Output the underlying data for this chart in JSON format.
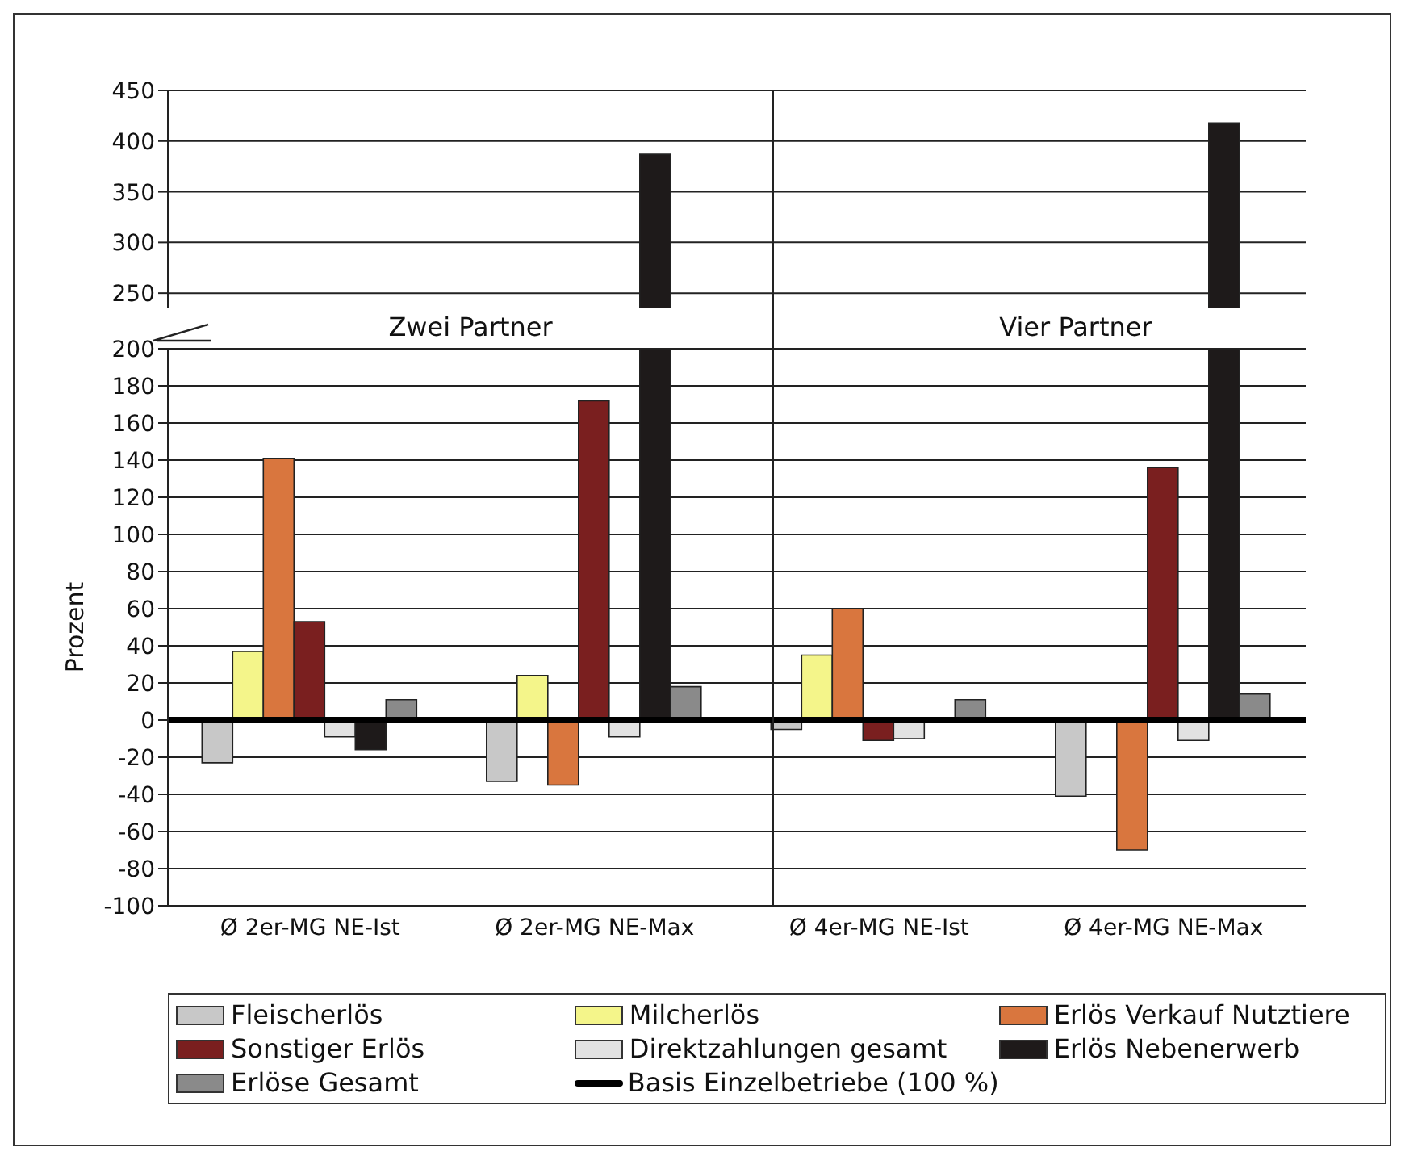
{
  "chart_data": [
    {
      "type": "bar",
      "categories": [
        null,
        null,
        null,
        null
      ],
      "series": [
        {
          "color": "#c8c8c8",
          "values": [
            null,
            null,
            null,
            null
          ]
        },
        {
          "color": "#f4f58a",
          "values": [
            null,
            null,
            null,
            null
          ]
        },
        {
          "color": "#d9763e",
          "values": [
            null,
            null,
            null,
            null
          ]
        },
        {
          "color": "#7a1f1f",
          "values": [
            null,
            null,
            null,
            null
          ]
        },
        {
          "color": "#e2e2e2",
          "values": [
            null,
            null,
            null,
            null
          ]
        },
        {
          "color": "#1e1a1a",
          "values": [
            null,
            387,
            null,
            418
          ]
        },
        {
          "color": "#8a8a8a",
          "values": [
            null,
            null,
            null,
            null
          ]
        }
      ],
      "ylim": [
        235,
        450
      ],
      "yticks": [
        250,
        300,
        350,
        400,
        450
      ],
      "grid": "y",
      "tick_labels": "y"
    },
    {
      "type": "bar",
      "categories": [
        "Ø 2er-MG NE-Ist",
        "Ø 2er-MG NE-Max",
        "Ø 4er-MG NE-Ist",
        "Ø 4er-MG NE-Max"
      ],
      "ylabel": "Prozent",
      "annotations": [
        "Zwei Partner",
        "Vier Partner"
      ],
      "series": [
        {
          "name": "Fleischerlös",
          "color": "#c8c8c8",
          "values": [
            -23,
            -33,
            -5,
            -41
          ]
        },
        {
          "name": "Milcherlös",
          "color": "#f4f58a",
          "values": [
            37,
            24,
            35,
            null
          ]
        },
        {
          "name": "Erlös Verkauf Nutztiere",
          "color": "#d9763e",
          "values": [
            141,
            -35,
            60,
            -70
          ]
        },
        {
          "name": "Sonstiger Erlös",
          "color": "#7a1f1f",
          "values": [
            53,
            172,
            -11,
            136
          ]
        },
        {
          "name": "Direktzahlungen gesamt",
          "color": "#e2e2e2",
          "values": [
            -9,
            -9,
            -10,
            -11
          ]
        },
        {
          "name": "Erlös Nebenerwerb",
          "color": "#1e1a1a",
          "values": [
            -16,
            200,
            null,
            200
          ]
        },
        {
          "name": "Erlöse Gesamt",
          "color": "#8a8a8a",
          "values": [
            11,
            18,
            11,
            14
          ]
        }
      ],
      "ylim": [
        -100,
        200
      ],
      "yticks": [
        -100,
        -80,
        -60,
        -40,
        -20,
        0,
        20,
        40,
        60,
        80,
        100,
        120,
        140,
        160,
        180,
        200
      ],
      "grid": "y",
      "ref_lines": [
        {
          "axis": "y",
          "value": 0,
          "label": "Basis Einzelbetriebe (100 %)",
          "color": "#000000"
        }
      ],
      "legend": "bottom"
    }
  ]
}
